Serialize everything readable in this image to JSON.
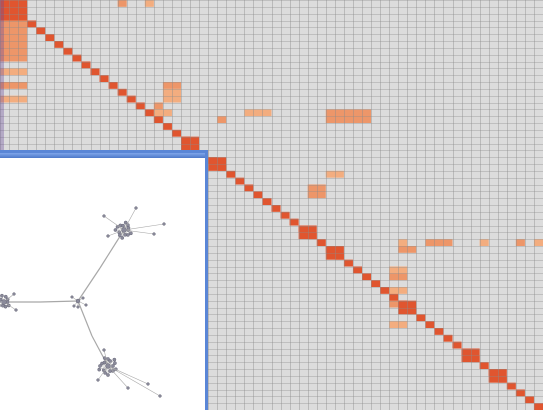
{
  "colors": {
    "background": "#dcdcdc",
    "grid_line": "#8c8c8c",
    "diagonal": "#e0552f",
    "highlight_light": "#f7a46e",
    "highlight_mid": "#f08a55",
    "graph_bg": "#ffffff",
    "graph_edge": "#a8a8a8",
    "graph_node": "#8a8a9a",
    "window_border": "#5a86d6"
  },
  "matrix": {
    "rows": 60,
    "cols": 60,
    "diagonal_blocks": [
      {
        "start": 0,
        "size": 3
      },
      {
        "start": 20,
        "size": 2
      },
      {
        "start": 23,
        "size": 2
      },
      {
        "start": 33,
        "size": 2
      },
      {
        "start": 36,
        "size": 2
      },
      {
        "start": 44,
        "size": 2
      },
      {
        "start": 51,
        "size": 2
      },
      {
        "start": 54,
        "size": 2
      }
    ],
    "highlight_cells": [
      {
        "row": 0,
        "col": 13,
        "w": 1,
        "h": 1
      },
      {
        "row": 0,
        "col": 16,
        "w": 1,
        "h": 1
      },
      {
        "row": 1,
        "col": 0,
        "w": 3,
        "h": 8
      },
      {
        "row": 10,
        "col": 0,
        "w": 3,
        "h": 1
      },
      {
        "row": 12,
        "col": 0,
        "w": 3,
        "h": 1
      },
      {
        "row": 14,
        "col": 0,
        "w": 3,
        "h": 1
      },
      {
        "row": 12,
        "col": 18,
        "w": 2,
        "h": 1
      },
      {
        "row": 13,
        "col": 18,
        "w": 2,
        "h": 2
      },
      {
        "row": 15,
        "col": 17,
        "w": 1,
        "h": 1
      },
      {
        "row": 16,
        "col": 17,
        "w": 2,
        "h": 1
      },
      {
        "row": 17,
        "col": 24,
        "w": 1,
        "h": 1
      },
      {
        "row": 16,
        "col": 27,
        "w": 3,
        "h": 1
      },
      {
        "row": 16,
        "col": 36,
        "w": 5,
        "h": 2
      },
      {
        "row": 25,
        "col": 36,
        "w": 2,
        "h": 1
      },
      {
        "row": 27,
        "col": 34,
        "w": 2,
        "h": 2
      },
      {
        "row": 35,
        "col": 44,
        "w": 1,
        "h": 1
      },
      {
        "row": 35,
        "col": 47,
        "w": 3,
        "h": 1
      },
      {
        "row": 35,
        "col": 53,
        "w": 1,
        "h": 1
      },
      {
        "row": 35,
        "col": 57,
        "w": 1,
        "h": 1
      },
      {
        "row": 35,
        "col": 59,
        "w": 2,
        "h": 1
      },
      {
        "row": 36,
        "col": 44,
        "w": 2,
        "h": 1
      },
      {
        "row": 39,
        "col": 43,
        "w": 2,
        "h": 1
      },
      {
        "row": 40,
        "col": 43,
        "w": 2,
        "h": 1
      },
      {
        "row": 42,
        "col": 43,
        "w": 2,
        "h": 1
      },
      {
        "row": 44,
        "col": 43,
        "w": 2,
        "h": 1
      },
      {
        "row": 47,
        "col": 43,
        "w": 2,
        "h": 1
      }
    ]
  },
  "graph": {
    "clusters": [
      {
        "name": "top",
        "n": 14,
        "spread": 9
      },
      {
        "name": "left",
        "n": 10,
        "spread": 7
      },
      {
        "name": "bottom",
        "n": 16,
        "spread": 10
      }
    ],
    "hub_label": ""
  }
}
